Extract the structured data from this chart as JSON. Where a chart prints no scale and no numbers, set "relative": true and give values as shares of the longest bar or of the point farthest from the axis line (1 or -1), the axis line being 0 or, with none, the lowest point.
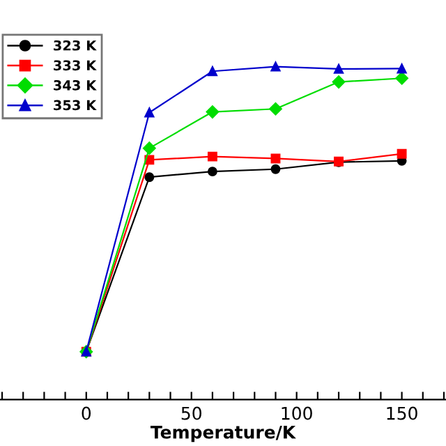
{
  "chart_data": {
    "type": "line",
    "relative": true,
    "xlabel": "Temperature/K",
    "x": [
      0,
      30,
      60,
      90,
      120,
      150
    ],
    "xlim": [
      -41,
      171
    ],
    "xticks": [
      {
        "value": -40,
        "label": null
      },
      {
        "value": -30,
        "label": null
      },
      {
        "value": -20,
        "label": null
      },
      {
        "value": -10,
        "label": null
      },
      0,
      {
        "value": 10,
        "label": null
      },
      {
        "value": 20,
        "label": null
      },
      {
        "value": 30,
        "label": null
      },
      {
        "value": 40,
        "label": null
      },
      50,
      {
        "value": 60,
        "label": null
      },
      {
        "value": 70,
        "label": null
      },
      {
        "value": 80,
        "label": null
      },
      {
        "value": 90,
        "label": null
      },
      100,
      {
        "value": 110,
        "label": null
      },
      {
        "value": 120,
        "label": null
      },
      {
        "value": 130,
        "label": null
      },
      {
        "value": 140,
        "label": null
      },
      150,
      {
        "value": 160,
        "label": null
      },
      {
        "value": 170,
        "label": null
      }
    ],
    "series": [
      {
        "name": "323 K",
        "color": "#000000",
        "marker": "circle",
        "values": [
          0.144,
          0.668,
          0.685,
          0.692,
          0.713,
          0.717
        ]
      },
      {
        "name": "333 K",
        "color": "#ff0000",
        "marker": "square",
        "values": [
          0.144,
          0.72,
          0.73,
          0.724,
          0.715,
          0.738
        ]
      },
      {
        "name": "343 K",
        "color": "#00dd00",
        "marker": "diamond",
        "values": [
          0.144,
          0.755,
          0.864,
          0.873,
          0.954,
          0.965
        ]
      },
      {
        "name": "353 K",
        "color": "#0000cc",
        "marker": "triangle",
        "values": [
          0.144,
          0.862,
          0.986,
          1,
          0.993,
          0.994
        ]
      }
    ],
    "legend": "top left",
    "grid": false
  }
}
